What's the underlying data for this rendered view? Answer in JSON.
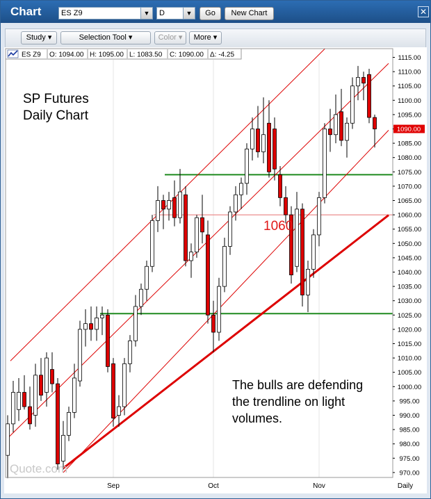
{
  "window": {
    "title": "Chart",
    "symbol": "ES Z9",
    "interval": "D",
    "go_label": "Go",
    "new_chart_label": "New Chart",
    "close_icon": "close-icon"
  },
  "toolbar": {
    "study_label": "Study ▾",
    "selection_tool_label": "Selection Tool ▾",
    "color_label": "Color ▾",
    "more_label": "More ▾"
  },
  "ohlc_bar": {
    "icon": "chart-line-icon",
    "symbol": "ES Z9",
    "open": "O: 1094.00",
    "high": "H: 1095.00",
    "low": "L: 1083.50",
    "close": "C: 1090.00",
    "delta": "Δ: -4.25"
  },
  "annotations": {
    "title_line1": "SP Futures",
    "title_line2": "Daily Chart",
    "level_label": "1060",
    "note_line1": "The bulls are defending",
    "note_line2": "the trendline on light",
    "note_line3": "volumes.",
    "watermark": "Quote.com"
  },
  "colors": {
    "up_candle": "#ffffff",
    "down_candle": "#dd0000",
    "trend_line": "#dd0000",
    "horizontal_support": "#1f8a1f",
    "level_line": "#e87070",
    "last_price_bg": "#e00000"
  },
  "chart_data": {
    "type": "candlestick",
    "ylim": [
      968,
      1117
    ],
    "y_ticks": [
      "1115.00",
      "1110.00",
      "1105.00",
      "1100.00",
      "1095.00",
      "1090.00",
      "1085.00",
      "1080.00",
      "1075.00",
      "1070.00",
      "1065.00",
      "1060.00",
      "1055.00",
      "1050.00",
      "1045.00",
      "1040.00",
      "1035.00",
      "1030.00",
      "1025.00",
      "1020.00",
      "1015.00",
      "1010.00",
      "1005.00",
      "1000.00",
      "995.00",
      "990.00",
      "985.00",
      "980.00",
      "975.00",
      "970.00"
    ],
    "x_labels": [
      "Sep",
      "Oct",
      "Nov"
    ],
    "x_axis_label": "Daily",
    "last_price_label": "1090.00",
    "last_price": 1090,
    "horizontal_levels": [
      {
        "name": "resistance",
        "value": 1074
      },
      {
        "name": "support",
        "value": 1025.5
      },
      {
        "name": "level-1060",
        "value": 1060
      }
    ],
    "channel_lines": [
      {
        "name": "upper-channel",
        "p1": [
          0.5,
          1009
        ],
        "p2": [
          56,
          1116
        ]
      },
      {
        "name": "middle-channel",
        "p1": [
          0,
          982
        ],
        "p2": [
          56,
          1089
        ]
      },
      {
        "name": "lower-channel",
        "p1": [
          10,
          970
        ],
        "p2": [
          56,
          1064
        ]
      },
      {
        "name": "main-trendline",
        "p1": [
          10,
          971.5
        ],
        "p2": [
          56,
          1041
        ]
      }
    ],
    "candles": [
      {
        "o": 976,
        "h": 990,
        "l": 968,
        "c": 987
      },
      {
        "o": 987,
        "h": 1002,
        "l": 984,
        "c": 998
      },
      {
        "o": 992,
        "h": 1003,
        "l": 988,
        "c": 998
      },
      {
        "o": 998,
        "h": 1004,
        "l": 992,
        "c": 993
      },
      {
        "o": 993,
        "h": 1000,
        "l": 985,
        "c": 987
      },
      {
        "o": 990,
        "h": 1008,
        "l": 986,
        "c": 1004
      },
      {
        "o": 1004,
        "h": 1010,
        "l": 995,
        "c": 997
      },
      {
        "o": 998,
        "h": 1012,
        "l": 993,
        "c": 1010
      },
      {
        "o": 1006,
        "h": 1012,
        "l": 998,
        "c": 1001
      },
      {
        "o": 1001,
        "h": 1003,
        "l": 971,
        "c": 973
      },
      {
        "o": 974,
        "h": 988,
        "l": 971,
        "c": 983
      },
      {
        "o": 983,
        "h": 993,
        "l": 981,
        "c": 991
      },
      {
        "o": 991,
        "h": 1008,
        "l": 989,
        "c": 1003
      },
      {
        "o": 1002,
        "h": 1023,
        "l": 1000,
        "c": 1020
      },
      {
        "o": 1020,
        "h": 1027,
        "l": 1014,
        "c": 1022
      },
      {
        "o": 1022,
        "h": 1028,
        "l": 1016,
        "c": 1020
      },
      {
        "o": 1020,
        "h": 1028,
        "l": 1016,
        "c": 1024
      },
      {
        "o": 1024,
        "h": 1028,
        "l": 1018,
        "c": 1025
      },
      {
        "o": 1025,
        "h": 1027,
        "l": 1005,
        "c": 1007
      },
      {
        "o": 1008,
        "h": 1010,
        "l": 986,
        "c": 989
      },
      {
        "o": 990,
        "h": 997,
        "l": 986,
        "c": 993
      },
      {
        "o": 993,
        "h": 1010,
        "l": 990,
        "c": 1008
      },
      {
        "o": 1008,
        "h": 1018,
        "l": 1005,
        "c": 1016
      },
      {
        "o": 1016,
        "h": 1032,
        "l": 1014,
        "c": 1028
      },
      {
        "o": 1028,
        "h": 1036,
        "l": 1025,
        "c": 1034
      },
      {
        "o": 1034,
        "h": 1044,
        "l": 1030,
        "c": 1042
      },
      {
        "o": 1042,
        "h": 1060,
        "l": 1040,
        "c": 1058
      },
      {
        "o": 1058,
        "h": 1070,
        "l": 1054,
        "c": 1065
      },
      {
        "o": 1065,
        "h": 1067,
        "l": 1055,
        "c": 1062
      },
      {
        "o": 1062,
        "h": 1068,
        "l": 1058,
        "c": 1065
      },
      {
        "o": 1066,
        "h": 1072,
        "l": 1056,
        "c": 1059
      },
      {
        "o": 1059,
        "h": 1076,
        "l": 1057,
        "c": 1068
      },
      {
        "o": 1067,
        "h": 1070,
        "l": 1042,
        "c": 1044
      },
      {
        "o": 1044,
        "h": 1050,
        "l": 1038,
        "c": 1047
      },
      {
        "o": 1047,
        "h": 1060,
        "l": 1045,
        "c": 1059
      },
      {
        "o": 1059,
        "h": 1067,
        "l": 1050,
        "c": 1054
      },
      {
        "o": 1053,
        "h": 1058,
        "l": 1022,
        "c": 1025
      },
      {
        "o": 1025,
        "h": 1030,
        "l": 1012,
        "c": 1019
      },
      {
        "o": 1019,
        "h": 1038,
        "l": 1016,
        "c": 1035
      },
      {
        "o": 1035,
        "h": 1052,
        "l": 1033,
        "c": 1049
      },
      {
        "o": 1049,
        "h": 1063,
        "l": 1046,
        "c": 1061
      },
      {
        "o": 1061,
        "h": 1070,
        "l": 1058,
        "c": 1067
      },
      {
        "o": 1067,
        "h": 1073,
        "l": 1062,
        "c": 1071
      },
      {
        "o": 1071,
        "h": 1085,
        "l": 1067,
        "c": 1083
      },
      {
        "o": 1083,
        "h": 1094,
        "l": 1079,
        "c": 1090
      },
      {
        "o": 1090,
        "h": 1098,
        "l": 1080,
        "c": 1082
      },
      {
        "o": 1082,
        "h": 1101,
        "l": 1078,
        "c": 1088
      },
      {
        "o": 1092,
        "h": 1100,
        "l": 1073,
        "c": 1075
      },
      {
        "o": 1090,
        "h": 1094,
        "l": 1072,
        "c": 1076
      },
      {
        "o": 1074,
        "h": 1077,
        "l": 1063,
        "c": 1066
      },
      {
        "o": 1066,
        "h": 1070,
        "l": 1057,
        "c": 1060
      },
      {
        "o": 1060,
        "h": 1063,
        "l": 1036,
        "c": 1039
      },
      {
        "o": 1042,
        "h": 1068,
        "l": 1040,
        "c": 1062
      },
      {
        "o": 1062,
        "h": 1064,
        "l": 1028,
        "c": 1032
      },
      {
        "o": 1032,
        "h": 1044,
        "l": 1026,
        "c": 1041
      },
      {
        "o": 1041,
        "h": 1055,
        "l": 1038,
        "c": 1053
      },
      {
        "o": 1053,
        "h": 1068,
        "l": 1049,
        "c": 1066
      },
      {
        "o": 1066,
        "h": 1092,
        "l": 1064,
        "c": 1090
      },
      {
        "o": 1090,
        "h": 1097,
        "l": 1082,
        "c": 1088
      },
      {
        "o": 1088,
        "h": 1102,
        "l": 1085,
        "c": 1095
      },
      {
        "o": 1096,
        "h": 1104,
        "l": 1084,
        "c": 1086
      },
      {
        "o": 1086,
        "h": 1094,
        "l": 1080,
        "c": 1092
      },
      {
        "o": 1092,
        "h": 1108,
        "l": 1090,
        "c": 1105
      },
      {
        "o": 1105,
        "h": 1112,
        "l": 1100,
        "c": 1108
      },
      {
        "o": 1108,
        "h": 1110,
        "l": 1100,
        "c": 1106
      },
      {
        "o": 1109,
        "h": 1111,
        "l": 1092,
        "c": 1094
      },
      {
        "o": 1094,
        "h": 1095,
        "l": 1083.5,
        "c": 1090
      }
    ]
  }
}
